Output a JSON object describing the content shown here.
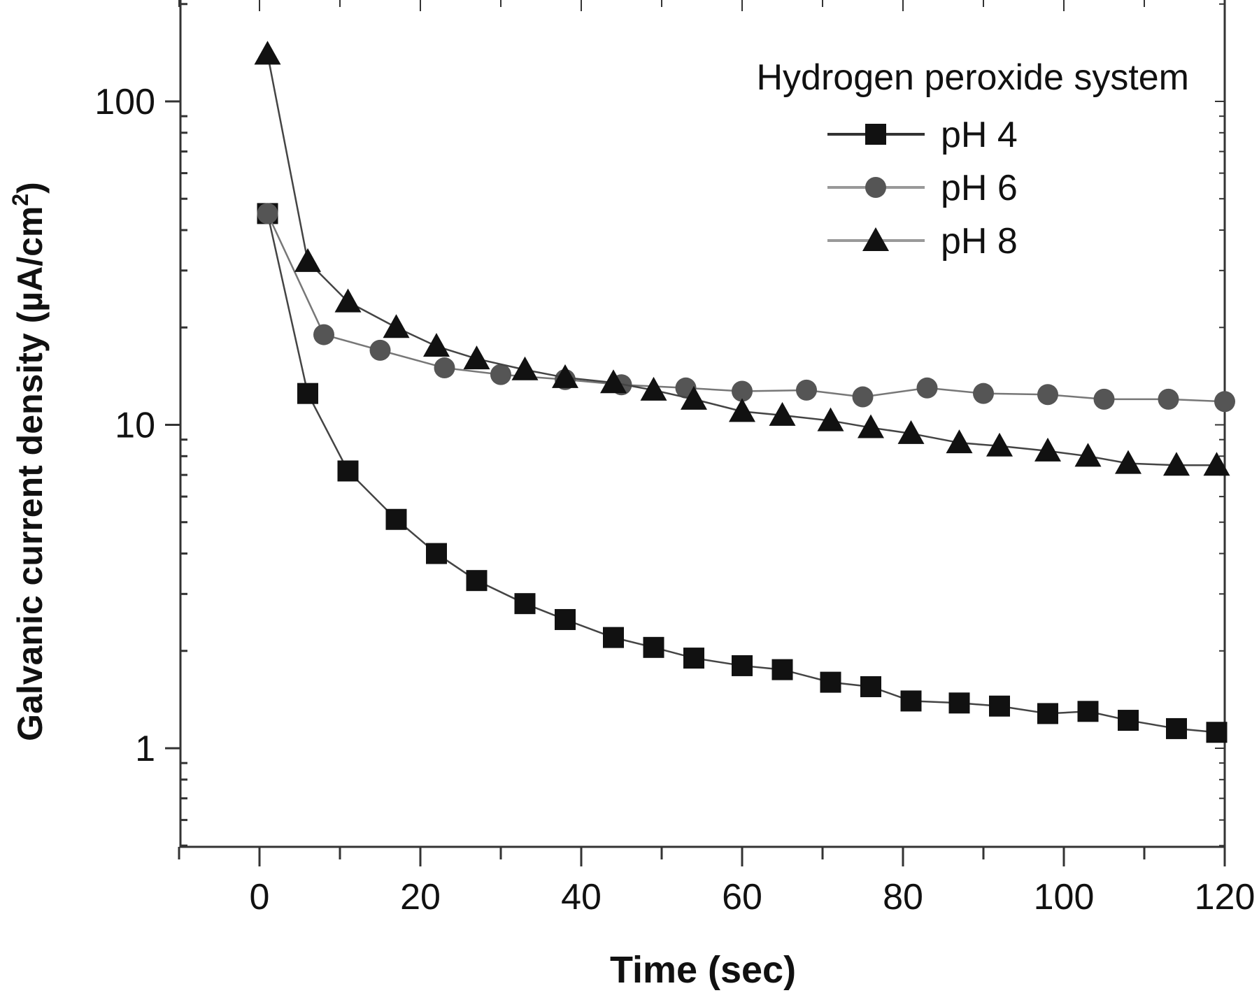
{
  "chart_data": {
    "type": "line",
    "title": "",
    "xlabel": "Time  (sec)",
    "ylabel": "Galvanic current density (µA/cm²)",
    "yscale": "log",
    "xlim": [
      -10,
      120
    ],
    "ylim": [
      0.5,
      200
    ],
    "xticks": [
      0,
      20,
      40,
      60,
      80,
      100,
      120
    ],
    "yticks": [
      1,
      10,
      100
    ],
    "grid": false,
    "legend_title": "Hydrogen peroxide system",
    "legend_position": "upper right",
    "series": [
      {
        "name": "pH 4",
        "marker": "square",
        "color": "#111111",
        "x": [
          1,
          6,
          11,
          17,
          22,
          27,
          33,
          38,
          44,
          49,
          54,
          60,
          65,
          71,
          76,
          81,
          87,
          92,
          98,
          103,
          108,
          114,
          119
        ],
        "y": [
          45,
          12.5,
          7.2,
          5.1,
          4.0,
          3.3,
          2.8,
          2.5,
          2.2,
          2.05,
          1.9,
          1.8,
          1.75,
          1.6,
          1.55,
          1.4,
          1.38,
          1.35,
          1.28,
          1.3,
          1.22,
          1.15,
          1.12
        ]
      },
      {
        "name": "pH 6",
        "marker": "circle",
        "color": "#555555",
        "x": [
          1,
          8,
          15,
          23,
          30,
          38,
          45,
          53,
          60,
          68,
          75,
          83,
          90,
          98,
          105,
          113,
          120
        ],
        "y": [
          45,
          19,
          17,
          15,
          14.3,
          13.8,
          13.3,
          13,
          12.7,
          12.8,
          12.2,
          13,
          12.5,
          12.4,
          12,
          12,
          11.8
        ]
      },
      {
        "name": "pH 8",
        "marker": "triangle",
        "color": "#111111",
        "x": [
          1,
          6,
          11,
          17,
          22,
          27,
          33,
          38,
          44,
          49,
          54,
          60,
          65,
          71,
          76,
          81,
          87,
          92,
          98,
          103,
          108,
          114,
          119
        ],
        "y": [
          140,
          32,
          24,
          20,
          17.5,
          16,
          14.8,
          14,
          13.5,
          12.8,
          12,
          11,
          10.7,
          10.3,
          9.8,
          9.4,
          8.8,
          8.6,
          8.3,
          8.0,
          7.6,
          7.5,
          7.5
        ]
      }
    ]
  },
  "labels": {
    "xlabel": "Time  (sec)",
    "ylabel": "Galvanic current density (µA/cm",
    "ylabel_sup": "2",
    "ylabel_close": ")",
    "legend_title": "Hydrogen peroxide system",
    "legend": [
      "pH 4",
      "pH 6",
      "pH 8"
    ]
  }
}
